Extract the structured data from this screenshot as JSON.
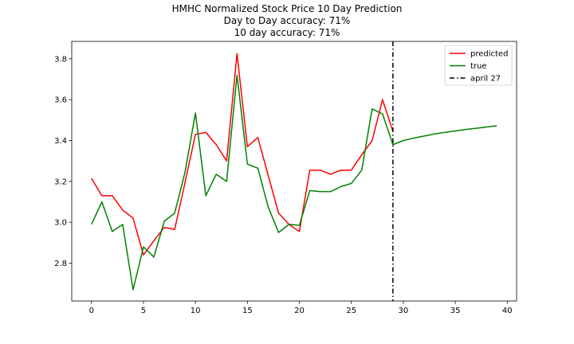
{
  "chart_data": {
    "type": "line",
    "title_lines": [
      "HMHC Normalized Stock Price 10 Day Prediction",
      "Day to Day accuracy: 71%",
      "10 day accuracy: 71%"
    ],
    "xlim": [
      -1.9,
      40.9
    ],
    "ylim": [
      2.615,
      3.885
    ],
    "x_ticks": [
      0,
      5,
      10,
      15,
      20,
      25,
      30,
      35,
      40
    ],
    "y_ticks": [
      2.8,
      3.0,
      3.2,
      3.4,
      3.6,
      3.8
    ],
    "y_tick_labels": [
      "2.8",
      "3.0",
      "3.2",
      "3.4",
      "3.6",
      "3.8"
    ],
    "grid": false,
    "legend_position": "top-right",
    "series": [
      {
        "name": "predicted",
        "color": "#ff0000",
        "x": [
          0,
          1,
          2,
          3,
          4,
          5,
          6,
          7,
          8,
          9,
          10,
          11,
          12,
          13,
          14,
          15,
          16,
          17,
          18,
          19,
          20,
          21,
          22,
          23,
          24,
          25,
          26,
          27,
          28,
          29
        ],
        "y": [
          3.215,
          3.13,
          3.13,
          3.06,
          3.02,
          2.84,
          2.91,
          2.975,
          2.965,
          3.195,
          3.43,
          3.44,
          3.38,
          3.3,
          3.825,
          3.37,
          3.415,
          3.23,
          3.045,
          2.99,
          2.955,
          3.255,
          3.255,
          3.235,
          3.255,
          3.255,
          3.33,
          3.4,
          3.6,
          3.445
        ]
      },
      {
        "name": "true",
        "color": "#008000",
        "x": [
          0,
          1,
          2,
          3,
          4,
          5,
          6,
          7,
          8,
          9,
          10,
          11,
          12,
          13,
          14,
          15,
          16,
          17,
          18,
          19,
          20,
          21,
          22,
          23,
          24,
          25,
          26,
          27,
          28,
          29,
          30,
          31,
          32,
          33,
          34,
          35,
          36,
          37,
          38,
          39
        ],
        "y": [
          2.99,
          3.1,
          2.955,
          2.99,
          2.67,
          2.88,
          2.83,
          3.005,
          3.045,
          3.245,
          3.535,
          3.13,
          3.235,
          3.2,
          3.72,
          3.285,
          3.265,
          3.075,
          2.95,
          2.99,
          2.985,
          3.155,
          3.15,
          3.15,
          3.175,
          3.19,
          3.255,
          3.555,
          3.53,
          3.38,
          3.4,
          3.412,
          3.422,
          3.432,
          3.44,
          3.447,
          3.454,
          3.46,
          3.466,
          3.472
        ]
      }
    ],
    "vline": {
      "name": "april 27",
      "x": 29,
      "color": "#000000",
      "style": "dashdot"
    }
  }
}
